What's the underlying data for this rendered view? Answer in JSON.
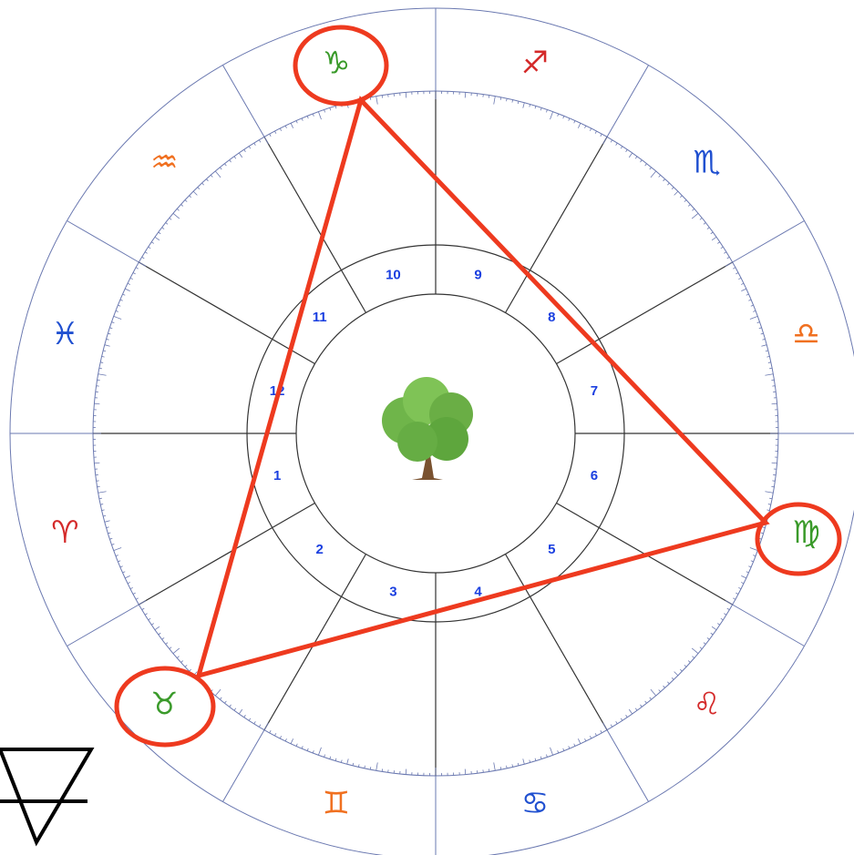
{
  "signs": [
    {
      "glyph": "♈",
      "color": "#d42a2a"
    },
    {
      "glyph": "♉",
      "color": "#3a9a2a"
    },
    {
      "glyph": "♊",
      "color": "#f07020"
    },
    {
      "glyph": "♋",
      "color": "#2050d0"
    },
    {
      "glyph": "♌",
      "color": "#d42a2a"
    },
    {
      "glyph": "♍",
      "color": "#3a9a2a"
    },
    {
      "glyph": "♎",
      "color": "#f07020"
    },
    {
      "glyph": "♏",
      "color": "#2050d0"
    },
    {
      "glyph": "♐",
      "color": "#d42a2a"
    },
    {
      "glyph": "♑",
      "color": "#3a9a2a"
    },
    {
      "glyph": "♒",
      "color": "#f07020"
    },
    {
      "glyph": "♓",
      "color": "#2050d0"
    }
  ],
  "houses": [
    "1",
    "2",
    "3",
    "4",
    "5",
    "6",
    "7",
    "8",
    "9",
    "10",
    "11",
    "12"
  ]
}
